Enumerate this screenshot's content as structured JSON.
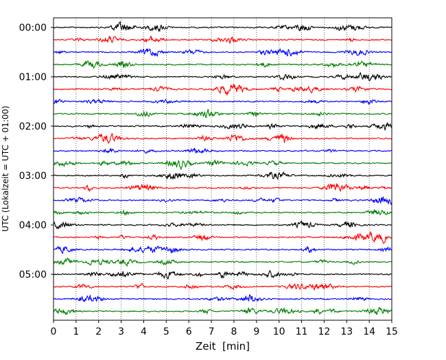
{
  "chart_data": {
    "type": "line",
    "title": "",
    "xlabel": "Zeit  [min]",
    "ylabel": "UTC (Lokalzeit = UTC + 01:00)",
    "xlim": [
      0,
      15
    ],
    "x_ticks": [
      0,
      1,
      2,
      3,
      4,
      5,
      6,
      7,
      8,
      9,
      10,
      11,
      12,
      13,
      14,
      15
    ],
    "x_tick_labels": [
      "0",
      "1",
      "2",
      "3",
      "4",
      "5",
      "6",
      "7",
      "8",
      "9",
      "10",
      "11",
      "12",
      "13",
      "14",
      "15"
    ],
    "y_tick_labels": [
      "00:00",
      "01:00",
      "02:00",
      "03:00",
      "04:00",
      "05:00"
    ],
    "trace_minutes": 15,
    "trace_count": 24,
    "trace_color_cycle": [
      "#000000",
      "#ff0000",
      "#0000ff",
      "#007f00"
    ],
    "trace_start_labels": [
      "00:00",
      "00:15",
      "00:30",
      "00:45",
      "01:00",
      "01:15",
      "01:30",
      "01:45",
      "02:00",
      "02:15",
      "02:30",
      "02:45",
      "03:00",
      "03:15",
      "03:30",
      "03:45",
      "04:00",
      "04:15",
      "04:30",
      "04:45",
      "05:00",
      "05:15",
      "05:30",
      "05:45"
    ],
    "grid": {
      "x": true,
      "style": "dotted"
    },
    "legend": "none"
  }
}
